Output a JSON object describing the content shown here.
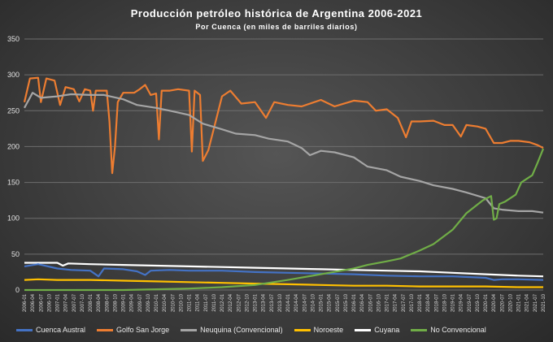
{
  "chart_data": {
    "type": "line",
    "title": "Producción  petróleo  histórica  de  Argentina  2006-2021",
    "subtitle": "Por Cuenca  (en miles de barriles diarios)",
    "ylim": [
      0,
      350
    ],
    "yticks": [
      0,
      50,
      100,
      150,
      200,
      250,
      300,
      350
    ],
    "grid": true,
    "legend_position": "bottom",
    "x_start": "2006-01",
    "x_end": "2021-10",
    "x_tick_step_months": 3,
    "series": [
      {
        "name": "Cuenca Austral",
        "color": "#4472c4",
        "points": [
          [
            "2006-01",
            33
          ],
          [
            "2006-06",
            36
          ],
          [
            "2007-01",
            30
          ],
          [
            "2007-06",
            28
          ],
          [
            "2008-01",
            27
          ],
          [
            "2008-04",
            19
          ],
          [
            "2008-06",
            30
          ],
          [
            "2009-01",
            29
          ],
          [
            "2009-06",
            26
          ],
          [
            "2009-09",
            21
          ],
          [
            "2009-11",
            27
          ],
          [
            "2010-06",
            28
          ],
          [
            "2011-01",
            27
          ],
          [
            "2012-01",
            27
          ],
          [
            "2013-01",
            25
          ],
          [
            "2014-01",
            24
          ],
          [
            "2015-01",
            23
          ],
          [
            "2016-01",
            22
          ],
          [
            "2017-01",
            20
          ],
          [
            "2018-01",
            19
          ],
          [
            "2019-01",
            19
          ],
          [
            "2020-01",
            17
          ],
          [
            "2020-04",
            14
          ],
          [
            "2020-07",
            15
          ],
          [
            "2021-01",
            15
          ],
          [
            "2021-10",
            14
          ]
        ]
      },
      {
        "name": "Golfo San Jorge",
        "color": "#ed7d31",
        "points": [
          [
            "2006-01",
            262
          ],
          [
            "2006-03",
            295
          ],
          [
            "2006-06",
            296
          ],
          [
            "2006-07",
            262
          ],
          [
            "2006-09",
            295
          ],
          [
            "2006-12",
            292
          ],
          [
            "2007-02",
            258
          ],
          [
            "2007-04",
            283
          ],
          [
            "2007-07",
            280
          ],
          [
            "2007-09",
            263
          ],
          [
            "2007-11",
            280
          ],
          [
            "2008-01",
            278
          ],
          [
            "2008-02",
            250
          ],
          [
            "2008-03",
            278
          ],
          [
            "2008-07",
            278
          ],
          [
            "2008-08",
            235
          ],
          [
            "2008-09",
            163
          ],
          [
            "2008-10",
            200
          ],
          [
            "2008-11",
            262
          ],
          [
            "2009-01",
            275
          ],
          [
            "2009-05",
            275
          ],
          [
            "2009-07",
            280
          ],
          [
            "2009-09",
            286
          ],
          [
            "2009-11",
            272
          ],
          [
            "2010-01",
            274
          ],
          [
            "2010-02",
            210
          ],
          [
            "2010-03",
            278
          ],
          [
            "2010-06",
            278
          ],
          [
            "2010-09",
            280
          ],
          [
            "2011-01",
            278
          ],
          [
            "2011-02",
            193
          ],
          [
            "2011-03",
            278
          ],
          [
            "2011-05",
            272
          ],
          [
            "2011-06",
            180
          ],
          [
            "2011-08",
            195
          ],
          [
            "2011-11",
            240
          ],
          [
            "2012-01",
            270
          ],
          [
            "2012-04",
            278
          ],
          [
            "2012-08",
            260
          ],
          [
            "2013-01",
            262
          ],
          [
            "2013-05",
            240
          ],
          [
            "2013-08",
            262
          ],
          [
            "2014-01",
            258
          ],
          [
            "2014-06",
            256
          ],
          [
            "2015-01",
            265
          ],
          [
            "2015-06",
            256
          ],
          [
            "2016-01",
            264
          ],
          [
            "2016-06",
            262
          ],
          [
            "2016-09",
            250
          ],
          [
            "2017-01",
            252
          ],
          [
            "2017-05",
            240
          ],
          [
            "2017-08",
            213
          ],
          [
            "2017-10",
            235
          ],
          [
            "2018-01",
            235
          ],
          [
            "2018-06",
            236
          ],
          [
            "2018-10",
            230
          ],
          [
            "2019-01",
            230
          ],
          [
            "2019-04",
            214
          ],
          [
            "2019-06",
            230
          ],
          [
            "2019-10",
            228
          ],
          [
            "2020-01",
            225
          ],
          [
            "2020-04",
            205
          ],
          [
            "2020-07",
            205
          ],
          [
            "2020-10",
            208
          ],
          [
            "2021-01",
            208
          ],
          [
            "2021-05",
            206
          ],
          [
            "2021-08",
            202
          ],
          [
            "2021-10",
            198
          ]
        ]
      },
      {
        "name": "Neuquina (Convencional)",
        "color": "#a5a5a5",
        "points": [
          [
            "2006-01",
            254
          ],
          [
            "2006-04",
            275
          ],
          [
            "2006-07",
            268
          ],
          [
            "2007-01",
            270
          ],
          [
            "2007-06",
            273
          ],
          [
            "2008-01",
            272
          ],
          [
            "2008-06",
            272
          ],
          [
            "2009-01",
            266
          ],
          [
            "2009-06",
            258
          ],
          [
            "2010-01",
            254
          ],
          [
            "2010-06",
            250
          ],
          [
            "2011-01",
            244
          ],
          [
            "2011-06",
            232
          ],
          [
            "2012-01",
            224
          ],
          [
            "2012-06",
            218
          ],
          [
            "2013-01",
            216
          ],
          [
            "2013-06",
            211
          ],
          [
            "2014-01",
            207
          ],
          [
            "2014-06",
            198
          ],
          [
            "2014-09",
            188
          ],
          [
            "2015-01",
            194
          ],
          [
            "2015-06",
            192
          ],
          [
            "2016-01",
            185
          ],
          [
            "2016-06",
            172
          ],
          [
            "2017-01",
            167
          ],
          [
            "2017-06",
            158
          ],
          [
            "2018-01",
            152
          ],
          [
            "2018-06",
            146
          ],
          [
            "2019-01",
            141
          ],
          [
            "2019-06",
            136
          ],
          [
            "2020-01",
            128
          ],
          [
            "2020-04",
            114
          ],
          [
            "2020-07",
            112
          ],
          [
            "2021-01",
            110
          ],
          [
            "2021-06",
            110
          ],
          [
            "2021-10",
            108
          ]
        ]
      },
      {
        "name": "Noroeste",
        "color": "#ffc000",
        "points": [
          [
            "2006-01",
            14
          ],
          [
            "2006-06",
            15
          ],
          [
            "2007-01",
            14
          ],
          [
            "2008-01",
            14
          ],
          [
            "2009-01",
            13
          ],
          [
            "2010-01",
            12
          ],
          [
            "2011-01",
            11
          ],
          [
            "2012-01",
            10
          ],
          [
            "2013-01",
            9
          ],
          [
            "2014-01",
            8
          ],
          [
            "2015-01",
            7
          ],
          [
            "2016-01",
            6
          ],
          [
            "2017-01",
            6
          ],
          [
            "2018-01",
            5
          ],
          [
            "2019-01",
            5
          ],
          [
            "2020-01",
            5
          ],
          [
            "2021-01",
            4
          ],
          [
            "2021-10",
            4
          ]
        ]
      },
      {
        "name": "Cuyana",
        "color": "#ffffff",
        "points": [
          [
            "2006-01",
            38
          ],
          [
            "2007-01",
            38
          ],
          [
            "2007-03",
            34
          ],
          [
            "2007-05",
            37
          ],
          [
            "2008-01",
            36
          ],
          [
            "2009-01",
            35
          ],
          [
            "2010-01",
            34
          ],
          [
            "2011-01",
            33
          ],
          [
            "2012-01",
            32
          ],
          [
            "2013-01",
            31
          ],
          [
            "2014-01",
            30
          ],
          [
            "2015-01",
            29
          ],
          [
            "2016-01",
            28
          ],
          [
            "2017-01",
            27
          ],
          [
            "2018-01",
            26
          ],
          [
            "2019-01",
            24
          ],
          [
            "2020-01",
            22
          ],
          [
            "2021-01",
            20
          ],
          [
            "2021-10",
            19
          ]
        ]
      },
      {
        "name": "No Convencional",
        "color": "#70ad47",
        "points": [
          [
            "2006-01",
            0
          ],
          [
            "2009-01",
            0
          ],
          [
            "2010-01",
            1
          ],
          [
            "2011-01",
            2
          ],
          [
            "2012-01",
            4
          ],
          [
            "2013-01",
            7
          ],
          [
            "2014-01",
            14
          ],
          [
            "2015-01",
            22
          ],
          [
            "2016-01",
            30
          ],
          [
            "2016-06",
            35
          ],
          [
            "2017-01",
            40
          ],
          [
            "2017-06",
            44
          ],
          [
            "2018-01",
            55
          ],
          [
            "2018-06",
            64
          ],
          [
            "2019-01",
            84
          ],
          [
            "2019-06",
            107
          ],
          [
            "2019-12",
            125
          ],
          [
            "2020-03",
            131
          ],
          [
            "2020-04",
            98
          ],
          [
            "2020-05",
            100
          ],
          [
            "2020-06",
            120
          ],
          [
            "2020-08",
            123
          ],
          [
            "2020-12",
            133
          ],
          [
            "2021-02",
            150
          ],
          [
            "2021-06",
            160
          ],
          [
            "2021-08",
            178
          ],
          [
            "2021-10",
            197
          ]
        ]
      }
    ]
  }
}
